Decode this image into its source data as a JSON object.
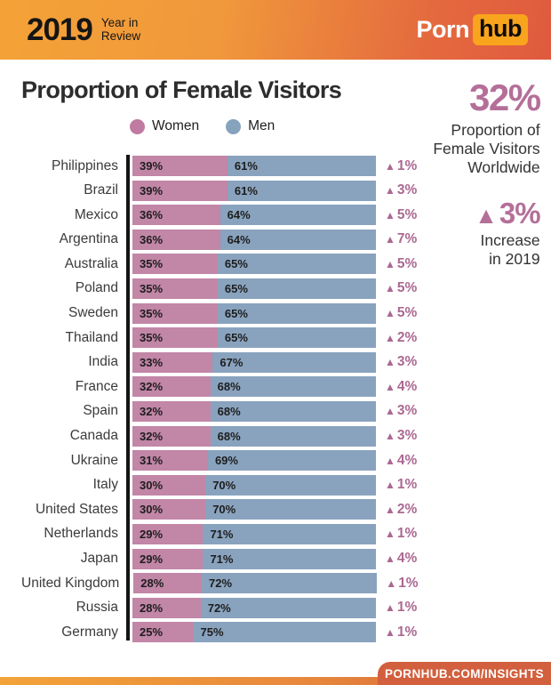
{
  "header": {
    "year": "2019",
    "subtitle": "Year in\nReview",
    "logo_part1": "Porn",
    "logo_part2": "hub"
  },
  "chart_data": {
    "type": "bar",
    "stacked": true,
    "orientation": "horizontal",
    "title": "Proportion of Female Visitors",
    "legend_position": "top",
    "xlim": [
      0,
      100
    ],
    "value_suffix": "%",
    "categories": [
      "Philippines",
      "Brazil",
      "Mexico",
      "Argentina",
      "Australia",
      "Poland",
      "Sweden",
      "Thailand",
      "India",
      "France",
      "Spain",
      "Canada",
      "Ukraine",
      "Italy",
      "United States",
      "Netherlands",
      "Japan",
      "United Kingdom",
      "Russia",
      "Germany"
    ],
    "series": [
      {
        "name": "Women",
        "values": [
          39,
          39,
          36,
          36,
          35,
          35,
          35,
          35,
          33,
          32,
          32,
          32,
          31,
          30,
          30,
          29,
          29,
          28,
          28,
          25
        ]
      },
      {
        "name": "Men",
        "values": [
          61,
          61,
          64,
          64,
          65,
          65,
          65,
          65,
          67,
          68,
          68,
          68,
          69,
          70,
          70,
          71,
          71,
          72,
          72,
          75
        ]
      }
    ],
    "change_yoy_pct": [
      1,
      3,
      5,
      7,
      5,
      5,
      5,
      2,
      3,
      4,
      3,
      3,
      4,
      1,
      2,
      1,
      4,
      1,
      1,
      1
    ],
    "change_direction": "up"
  },
  "sidebar": {
    "stat_value": "32%",
    "stat_label": "Proportion of\nFemale Visitors\nWorldwide",
    "increase_triangle": "▲",
    "increase_value": "3%",
    "increase_label": "Increase\nin 2019"
  },
  "footer": {
    "link": "PORNHUB.COM/INSIGHTS"
  },
  "colors": {
    "women_bar": "#c286a7",
    "men_bar": "#89a3be",
    "change_text": "#ab6892",
    "stat_pink": "#b46f99",
    "header_orange": "#f4a237",
    "header_red_orange": "#e05a3e",
    "logo_badge_orange": "#f9a41d",
    "footer_tab": "#d2603e",
    "axis_black": "#141414"
  }
}
